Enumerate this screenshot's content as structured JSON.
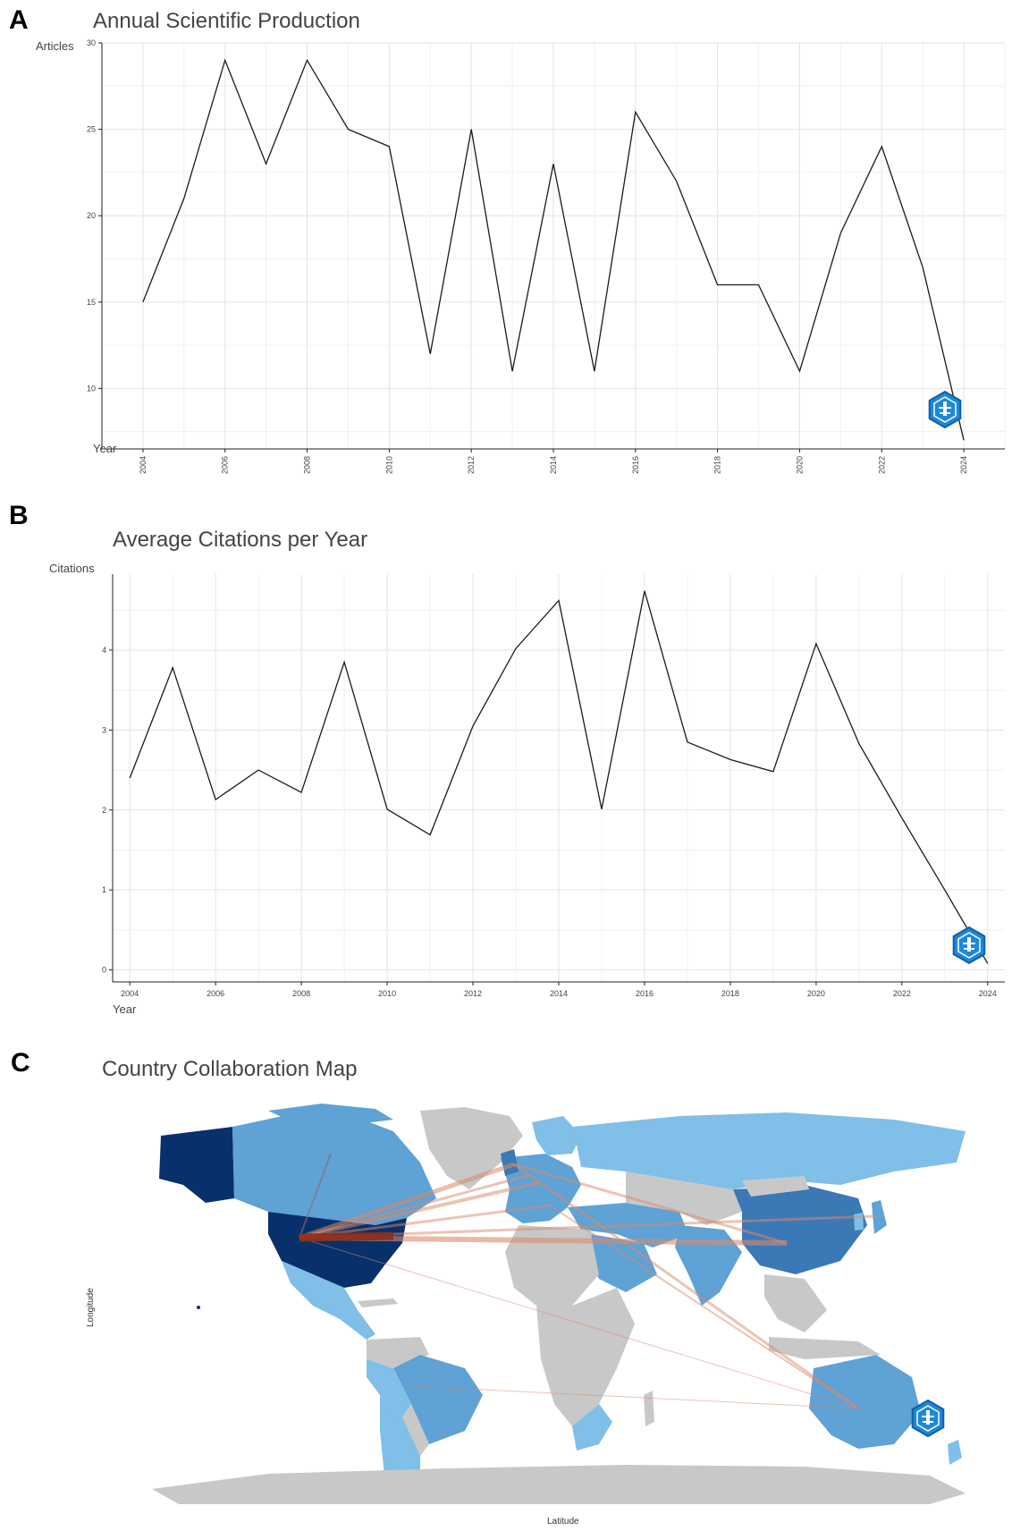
{
  "panels": {
    "a": {
      "letter": "A"
    },
    "b": {
      "letter": "B"
    },
    "c": {
      "letter": "C"
    }
  },
  "chart_data": [
    {
      "type": "line",
      "title": "Annual Scientific Production",
      "xlabel": "Year",
      "ylabel": "Articles",
      "x": [
        2004,
        2005,
        2006,
        2007,
        2008,
        2009,
        2010,
        2011,
        2012,
        2013,
        2014,
        2015,
        2016,
        2017,
        2018,
        2019,
        2020,
        2021,
        2022,
        2023,
        2024
      ],
      "y": [
        15,
        21,
        29,
        23,
        29,
        25,
        24,
        12,
        25,
        11,
        23,
        11,
        26,
        22,
        16,
        16,
        11,
        19,
        24,
        17,
        7
      ],
      "xticks": [
        "2004",
        "2006",
        "2008",
        "2010",
        "2012",
        "2014",
        "2016",
        "2018",
        "2020",
        "2022",
        "2024"
      ],
      "yticks": [
        "10",
        "15",
        "20",
        "25",
        "30"
      ],
      "xlim": [
        2003.0,
        2025.0
      ],
      "ylim": [
        6.5,
        30.0
      ],
      "grid": true,
      "x_tick_rotation": "vertical"
    },
    {
      "type": "line",
      "title": "Average Citations per Year",
      "xlabel": "Year",
      "ylabel": "Citations",
      "x": [
        2004,
        2005,
        2006,
        2007,
        2008,
        2009,
        2010,
        2011,
        2012,
        2013,
        2014,
        2015,
        2016,
        2017,
        2018,
        2019,
        2020,
        2021,
        2022,
        2023,
        2024
      ],
      "y": [
        2.4,
        3.78,
        2.13,
        2.5,
        2.22,
        3.85,
        2.01,
        1.69,
        3.05,
        4.02,
        4.62,
        2.01,
        4.74,
        2.85,
        2.63,
        2.48,
        4.08,
        2.83,
        1.9,
        1.0,
        0.08
      ],
      "xticks": [
        "2004",
        "2006",
        "2008",
        "2010",
        "2012",
        "2014",
        "2016",
        "2018",
        "2020",
        "2022",
        "2024"
      ],
      "yticks": [
        "0",
        "1",
        "2",
        "3",
        "4"
      ],
      "xlim": [
        2003.6,
        2024.4
      ],
      "ylim": [
        -0.15,
        4.95
      ],
      "grid": true
    }
  ],
  "map": {
    "title": "Country Collaboration Map",
    "xlabel": "Latitude",
    "ylabel": "Longitude",
    "colors": {
      "ocean": "#ffffff",
      "no_data": "#c8c8c8",
      "light": "#7fbfe8",
      "medium": "#5ea2d6",
      "dark": "#3b78b6",
      "darkest": "#08306b",
      "link": "#d98a6a",
      "link_strong": "#8b2e1a"
    },
    "collaboration_links": [
      [
        "USA",
        "China"
      ],
      [
        "USA",
        "United Kingdom"
      ],
      [
        "USA",
        "Germany"
      ],
      [
        "USA",
        "Netherlands"
      ],
      [
        "USA",
        "Italy"
      ],
      [
        "USA",
        "Japan"
      ],
      [
        "USA",
        "Australia"
      ],
      [
        "Canada",
        "USA"
      ],
      [
        "Australia",
        "United Kingdom"
      ],
      [
        "China",
        "United Kingdom"
      ],
      [
        "Brazil",
        "Australia"
      ],
      [
        "Australia",
        "Italy"
      ]
    ]
  },
  "badge_icon": "bibliometrix-hex-icon"
}
